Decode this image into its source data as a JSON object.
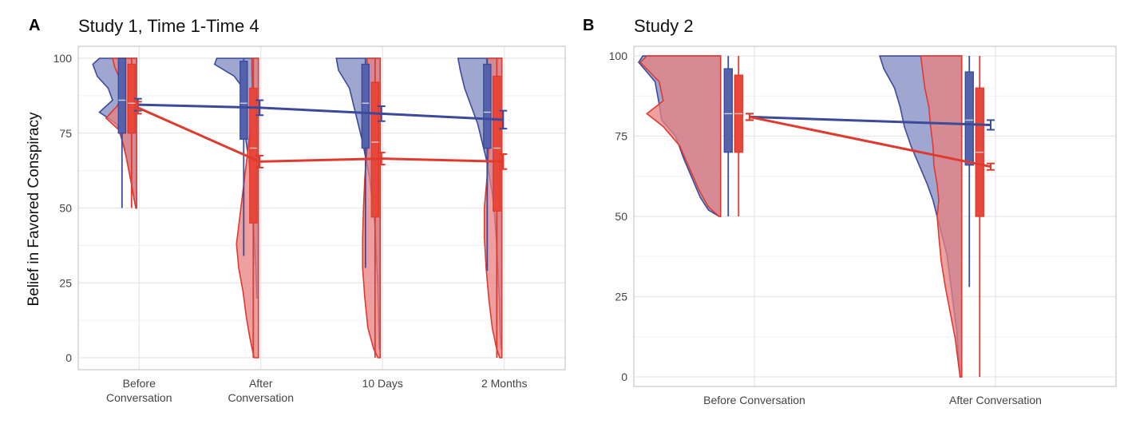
{
  "figure": {
    "ylabel": "Belief in Favored Conspiracy",
    "colors": {
      "control": "#3b4a9b",
      "control_fill": "#8e97c8",
      "treatment": "#e03a2f",
      "treatment_fill": "#e88080",
      "overlap_fill": "#a9545e",
      "grid": "#e6e6e6",
      "frame": "#bdbdbd"
    }
  },
  "chart_data": [
    {
      "type": "line",
      "panel_letter": "A",
      "title": "Study 1, Time 1-Time 4",
      "ylabel": "Belief in Favored Conspiracy",
      "categories": [
        "Before Conversation",
        "After Conversation",
        "10 Days",
        "2 Months"
      ],
      "category_labels": [
        [
          "Before",
          "Conversation"
        ],
        [
          "After",
          "Conversation"
        ],
        [
          "10 Days"
        ],
        [
          "2 Months"
        ]
      ],
      "ylim": [
        -4,
        104
      ],
      "yticks": [
        0,
        25,
        50,
        75,
        100
      ],
      "grid": true,
      "series": [
        {
          "key": "control",
          "means": [
            84.5,
            83.5,
            81.5,
            79.5
          ],
          "ci": [
            [
              82.5,
              86.5
            ],
            [
              81.0,
              86.0
            ],
            [
              79.0,
              84.0
            ],
            [
              76.5,
              82.5
            ]
          ],
          "boxes": [
            {
              "whisker_low": 50,
              "q1": 75,
              "median": 86,
              "q3": 100,
              "whisker_high": 100
            },
            {
              "whisker_low": 34,
              "q1": 73,
              "median": 85,
              "q3": 99,
              "whisker_high": 100
            },
            {
              "whisker_low": 30,
              "q1": 70,
              "median": 85,
              "q3": 98,
              "whisker_high": 100
            },
            {
              "whisker_low": 29,
              "q1": 70,
              "median": 82,
              "q3": 98,
              "whisker_high": 100
            }
          ]
        },
        {
          "key": "treatment",
          "means": [
            83.5,
            65.5,
            66.5,
            65.5
          ],
          "ci": [
            [
              81.5,
              85.5
            ],
            [
              63.5,
              67.5
            ],
            [
              64.5,
              68.5
            ],
            [
              63.0,
              68.0
            ]
          ],
          "boxes": [
            {
              "whisker_low": 50,
              "q1": 75,
              "median": 85,
              "q3": 98,
              "whisker_high": 100
            },
            {
              "whisker_low": 0,
              "q1": 45,
              "median": 70,
              "q3": 90,
              "whisker_high": 100
            },
            {
              "whisker_low": 0,
              "q1": 47,
              "median": 72,
              "q3": 92,
              "whisker_high": 100
            },
            {
              "whisker_low": 0,
              "q1": 49,
              "median": 70,
              "q3": 94,
              "whisker_high": 100
            }
          ]
        }
      ]
    },
    {
      "type": "line",
      "panel_letter": "B",
      "title": "Study 2",
      "categories": [
        "Before Conversation",
        "After Conversation"
      ],
      "category_labels": [
        [
          "Before Conversation"
        ],
        [
          "After Conversation"
        ]
      ],
      "ylim": [
        -3,
        103
      ],
      "yticks": [
        0,
        25,
        50,
        75,
        100
      ],
      "grid": true,
      "series": [
        {
          "key": "control",
          "means": [
            81.0,
            78.5
          ],
          "ci": [
            [
              80.0,
              82.0
            ],
            [
              77.0,
              80.0
            ]
          ],
          "boxes": [
            {
              "whisker_low": 50,
              "q1": 70,
              "median": 82,
              "q3": 96,
              "whisker_high": 100
            },
            {
              "whisker_low": 28,
              "q1": 66,
              "median": 80,
              "q3": 95,
              "whisker_high": 100
            }
          ]
        },
        {
          "key": "treatment",
          "means": [
            81.0,
            65.5
          ],
          "ci": [
            [
              80.0,
              82.0
            ],
            [
              64.5,
              66.5
            ]
          ],
          "boxes": [
            {
              "whisker_low": 50,
              "q1": 70,
              "median": 82,
              "q3": 94,
              "whisker_high": 100
            },
            {
              "whisker_low": 0,
              "q1": 50,
              "median": 70,
              "q3": 90,
              "whisker_high": 100
            }
          ]
        }
      ]
    }
  ]
}
